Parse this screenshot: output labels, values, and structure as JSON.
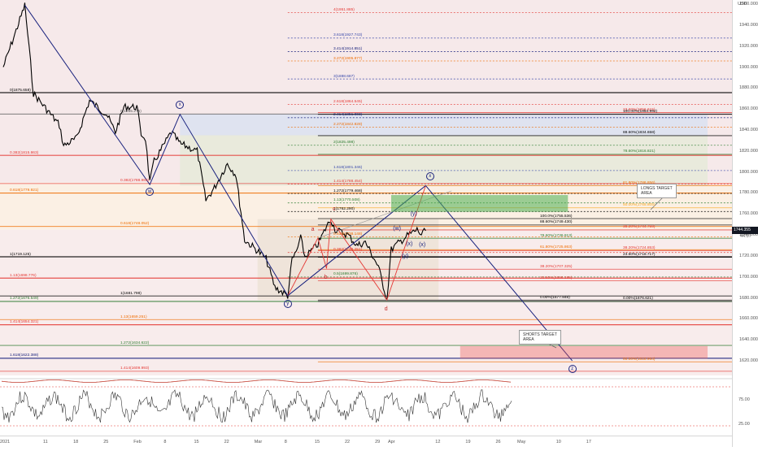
{
  "chart_data": {
    "type": "line",
    "title": "",
    "xlabel": "",
    "ylabel": "USD",
    "ylim": [
      1606,
      1964
    ],
    "price_axis_ticks": [
      "1960.000",
      "1940.000",
      "1920.000",
      "1900.000",
      "1880.000",
      "1860.000",
      "1840.000",
      "1820.000",
      "1800.000",
      "1780.000",
      "1760.000",
      "1740.000",
      "1720.000",
      "1700.000",
      "1680.000",
      "1660.000",
      "1640.000",
      "1620.000"
    ],
    "current_price": "1744.355",
    "current_price_sub": "44:07",
    "time_axis_ticks": [
      "2021",
      "11",
      "18",
      "25",
      "Feb",
      "8",
      "15",
      "22",
      "Mar",
      "8",
      "15",
      "22",
      "29",
      "Apr",
      "12",
      "19",
      "26",
      "May",
      "10",
      "17"
    ],
    "price_series": {
      "name": "XAUUSD",
      "points_date_price": [
        [
          "2021-01-01",
          1900
        ],
        [
          "2021-01-04",
          1935
        ],
        [
          "2021-01-06",
          1959
        ],
        [
          "2021-01-07",
          1918
        ],
        [
          "2021-01-08",
          1875
        ],
        [
          "2021-01-12",
          1855
        ],
        [
          "2021-01-14",
          1845
        ],
        [
          "2021-01-15",
          1825
        ],
        [
          "2021-01-18",
          1832
        ],
        [
          "2021-01-21",
          1868
        ],
        [
          "2021-01-25",
          1855
        ],
        [
          "2021-01-27",
          1838
        ],
        [
          "2021-01-29",
          1862
        ],
        [
          "2021-02-01",
          1862
        ],
        [
          "2021-02-02",
          1836
        ],
        [
          "2021-02-03",
          1832
        ],
        [
          "2021-02-04",
          1790
        ],
        [
          "2021-02-05",
          1810
        ],
        [
          "2021-02-09",
          1838
        ],
        [
          "2021-02-11",
          1827
        ],
        [
          "2021-02-15",
          1820
        ],
        [
          "2021-02-17",
          1773
        ],
        [
          "2021-02-19",
          1785
        ],
        [
          "2021-02-22",
          1808
        ],
        [
          "2021-02-24",
          1797
        ],
        [
          "2021-02-26",
          1735
        ],
        [
          "2021-03-01",
          1725
        ],
        [
          "2021-03-03",
          1717
        ],
        [
          "2021-03-05",
          1690
        ],
        [
          "2021-03-08",
          1682
        ],
        [
          "2021-03-09",
          1716
        ],
        [
          "2021-03-10",
          1724
        ],
        [
          "2021-03-11",
          1737
        ],
        [
          "2021-03-12",
          1719
        ],
        [
          "2021-03-15",
          1731
        ],
        [
          "2021-03-17",
          1748
        ],
        [
          "2021-03-18",
          1755
        ],
        [
          "2021-03-19",
          1745
        ],
        [
          "2021-03-22",
          1740
        ],
        [
          "2021-03-24",
          1730
        ],
        [
          "2021-03-26",
          1733
        ],
        [
          "2021-03-29",
          1710
        ],
        [
          "2021-03-31",
          1678
        ],
        [
          "2021-04-01",
          1726
        ],
        [
          "2021-04-02",
          1730
        ],
        [
          "2021-04-05",
          1740
        ],
        [
          "2021-04-07",
          1745
        ],
        [
          "2021-04-08",
          1740
        ],
        [
          "2021-04-09",
          1744
        ]
      ]
    },
    "oscillator": {
      "levels": [
        75,
        25
      ]
    },
    "wave_labels": [
      "x",
      "w",
      "x",
      "y",
      "a",
      "b",
      "c",
      "d",
      "(w)",
      "(x)",
      "(y)",
      "(x)",
      "(y)",
      "z"
    ],
    "fib_labels": [
      {
        "text": "4(1951.885)",
        "color": "#e53935",
        "price": 1951.885,
        "side": "mid"
      },
      {
        "text": "3.618(1927.743)",
        "color": "#3949ab",
        "price": 1927.743,
        "side": "mid"
      },
      {
        "text": "3.414(1914.851)",
        "color": "#1a237e",
        "price": 1914.851,
        "side": "mid"
      },
      {
        "text": "3.272(1905.877)",
        "color": "#ef6c00",
        "price": 1905.877,
        "side": "mid"
      },
      {
        "text": "3(1888.687)",
        "color": "#3949ab",
        "price": 1888.687,
        "side": "mid"
      },
      {
        "text": "0(1875.658)",
        "color": "#000000",
        "price": 1875.658,
        "side": "left"
      },
      {
        "text": "2.618(1864.545)",
        "color": "#e53935",
        "price": 1864.545,
        "side": "mid"
      },
      {
        "text": "0(1855.275)",
        "color": "#555555",
        "price": 1855.275,
        "side": "left2"
      },
      {
        "text": "2.414(1851.803)",
        "color": "#1a237e",
        "price": 1851.803,
        "side": "mid"
      },
      {
        "text": "2.272(1842.828)",
        "color": "#ef6c00",
        "price": 1842.828,
        "side": "mid"
      },
      {
        "text": "2(1825.498)",
        "color": "#2e7d32",
        "price": 1825.498,
        "side": "mid"
      },
      {
        "text": "0.382(1815.863)",
        "color": "#e53935",
        "price": 1815.863,
        "side": "left"
      },
      {
        "text": "1.618(1801.346)",
        "color": "#3949ab",
        "price": 1801.346,
        "side": "mid"
      },
      {
        "text": "0.382(1788.985)",
        "color": "#e53935",
        "price": 1788.985,
        "side": "left2"
      },
      {
        "text": "1.414(1788.454)",
        "color": "#e53935",
        "price": 1788.454,
        "side": "mid"
      },
      {
        "text": "0.618(1779.921)",
        "color": "#ef6c00",
        "price": 1779.921,
        "side": "left"
      },
      {
        "text": "1.272(1779.468)",
        "color": "#000000",
        "price": 1779.468,
        "side": "mid"
      },
      {
        "text": "1.13(1770.508)",
        "color": "#2e7d32",
        "price": 1770.508,
        "side": "mid"
      },
      {
        "text": "1(1762.290)",
        "color": "#000000",
        "price": 1762.29,
        "side": "mid"
      },
      {
        "text": "0.618(1748.052)",
        "color": "#ef6c00",
        "price": 1748.052,
        "side": "left2"
      },
      {
        "text": "0.618(1738.148)",
        "color": "#ef6c00",
        "price": 1738.148,
        "side": "mid"
      },
      {
        "text": "1(1719.125)",
        "color": "#000000",
        "price": 1719.125,
        "side": "left"
      },
      {
        "text": "0.382(1723.251)",
        "color": "#e53935",
        "price": 1723.251,
        "side": "mid"
      },
      {
        "text": "0.5(1699.876)",
        "color": "#2e7d32",
        "price": 1699.876,
        "side": "mid"
      },
      {
        "text": "1.13(1698.776)",
        "color": "#e53935",
        "price": 1698.776,
        "side": "left"
      },
      {
        "text": "1(1681.798)",
        "color": "#000000",
        "price": 1681.798,
        "side": "left2"
      },
      {
        "text": "1.272(1676.549)",
        "color": "#2e7d32",
        "price": 1676.549,
        "side": "left"
      },
      {
        "text": "1.13(1659.251)",
        "color": "#ef6c00",
        "price": 1659.251,
        "side": "left3"
      },
      {
        "text": "1.414(1654.321)",
        "color": "#e53935",
        "price": 1654.321,
        "side": "left"
      },
      {
        "text": "1.272(1634.622)",
        "color": "#2e7d32",
        "price": 1634.622,
        "side": "left3"
      },
      {
        "text": "1.618(1622.388)",
        "color": "#1a237e",
        "price": 1622.388,
        "side": "left"
      },
      {
        "text": "1.414(1609.993)",
        "color": "#e53935",
        "price": 1609.993,
        "side": "left3"
      },
      {
        "text": "100.0%(1755.536)",
        "color": "#000000",
        "price": 1755.536,
        "side": "right2"
      },
      {
        "text": "88.60%(1749.430)",
        "color": "#000000",
        "price": 1749.43,
        "side": "right2"
      },
      {
        "text": "78.60%(1736.813)",
        "color": "#2e7d32",
        "price": 1736.813,
        "side": "right2"
      },
      {
        "text": "61.80%(1725.863)",
        "color": "#ef6c00",
        "price": 1725.863,
        "side": "right2"
      },
      {
        "text": "38.20%(1707.325)",
        "color": "#e53935",
        "price": 1707.325,
        "side": "right2"
      },
      {
        "text": "23.60%(1696.185)",
        "color": "#e53935",
        "price": 1696.185,
        "side": "right2"
      },
      {
        "text": "0.00%(1677.848)",
        "color": "#000000",
        "price": 1677.848,
        "side": "right2"
      },
      {
        "text": "23.60%(1856.615)",
        "color": "#e53935",
        "price": 1856.615,
        "side": "right"
      },
      {
        "text": "100.00%(1854.992)",
        "color": "#000000",
        "price": 1854.992,
        "side": "right"
      },
      {
        "text": "88.60%(1834.658)",
        "color": "#000000",
        "price": 1834.658,
        "side": "right"
      },
      {
        "text": "78.60%(1816.821)",
        "color": "#2e7d32",
        "price": 1816.821,
        "side": "right"
      },
      {
        "text": "61.80%(1786.856)",
        "color": "#ef6c00",
        "price": 1786.856,
        "side": "right"
      },
      {
        "text": "50.00%(1765.805)",
        "color": "#f9a825",
        "price": 1765.805,
        "side": "right"
      },
      {
        "text": "38.20%(1744.759)",
        "color": "#e53935",
        "price": 1744.759,
        "side": "right"
      },
      {
        "text": "38.20%(1724.853)",
        "color": "#e53935",
        "price": 1724.853,
        "side": "right"
      },
      {
        "text": "23.60%(1718.717)",
        "color": "#000000",
        "price": 1718.717,
        "side": "right"
      },
      {
        "text": "0.00%(1676.621)",
        "color": "#000000",
        "price": 1676.621,
        "side": "right"
      },
      {
        "text": "00.00%(1618.964)",
        "color": "#ef6c00",
        "price": 1618.964,
        "side": "right"
      }
    ],
    "callouts": {
      "longs": "LONGS TARGET\nAREA",
      "shorts": "SHORTS TARGET\nAREA"
    },
    "colors": {
      "candles": "#000000",
      "wave_xwxyz": "#1a237e",
      "abcd": "#e53935",
      "longs_zone": "#4caf50",
      "shorts_zone": "#ef5350",
      "price_badge": "#131722"
    }
  }
}
